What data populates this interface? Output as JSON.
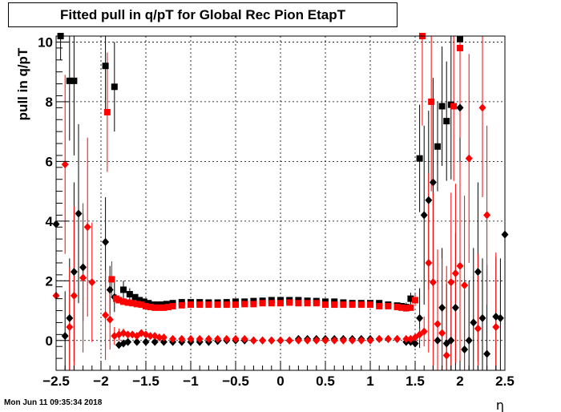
{
  "title": "Fitted pull in q/pT for Global Rec Pion EtapT",
  "timestamp": "Mon Jun 11 09:35:34 2018",
  "colors": {
    "series_black": "#000000",
    "series_red": "#ff0000",
    "grid": "#000000",
    "background": "#ffffff"
  },
  "chart_data": {
    "type": "scatter",
    "title": "Fitted pull in q/pT for Global Rec Pion EtapT",
    "xlabel": "η",
    "ylabel": "pull in q/pT",
    "xlim": [
      -2.5,
      2.5
    ],
    "ylim": [
      -1,
      10.2
    ],
    "grid": true,
    "x_ticks": [
      -2.5,
      -2,
      -1.5,
      -1,
      -0.5,
      0,
      0.5,
      1,
      1.5,
      2,
      2.5
    ],
    "x_tick_labels": [
      "−2.5",
      "−2",
      "−1.5",
      "−1",
      "−0.5",
      "0",
      "0.5",
      "1",
      "1.5",
      "2",
      "2.5"
    ],
    "y_ticks": [
      0,
      2,
      4,
      6,
      8,
      10
    ],
    "y_tick_labels": [
      "0",
      "2",
      "4",
      "6",
      "8",
      "10"
    ],
    "series": [
      {
        "marker": "square",
        "color": "#000000",
        "x": [
          -2.45,
          -2.35,
          -2.3,
          -1.95,
          -1.85,
          -1.75,
          -1.68,
          -1.62,
          -1.57,
          -1.52,
          -1.47,
          -1.42,
          -1.37,
          -1.32,
          -1.27,
          -1.2,
          -1.1,
          -1.0,
          -0.9,
          -0.8,
          -0.7,
          -0.6,
          -0.5,
          -0.4,
          -0.3,
          -0.2,
          -0.1,
          0.0,
          0.1,
          0.2,
          0.3,
          0.4,
          0.5,
          0.6,
          0.7,
          0.8,
          0.9,
          1.0,
          1.1,
          1.2,
          1.3,
          1.35,
          1.4,
          1.45,
          1.55,
          1.75,
          1.8,
          1.85,
          1.9,
          2.0
        ],
        "y": [
          10.2,
          8.7,
          8.7,
          9.2,
          8.5,
          1.7,
          1.55,
          1.45,
          1.35,
          1.3,
          1.25,
          1.2,
          1.2,
          1.2,
          1.22,
          1.25,
          1.28,
          1.28,
          1.28,
          1.27,
          1.27,
          1.28,
          1.3,
          1.3,
          1.32,
          1.33,
          1.35,
          1.35,
          1.35,
          1.35,
          1.33,
          1.32,
          1.3,
          1.3,
          1.27,
          1.25,
          1.25,
          1.25,
          1.25,
          1.2,
          1.17,
          1.15,
          1.12,
          1.4,
          6.1,
          6.5,
          7.85,
          7.35,
          7.9,
          10.1
        ],
        "err": [
          0.8,
          2.0,
          2.5,
          1.5,
          1.5,
          0.3,
          0.2,
          0.1,
          0.08,
          0.06,
          0.05,
          0.05,
          0.05,
          0.05,
          0.05,
          0.05,
          0.05,
          0.05,
          0.05,
          0.05,
          0.05,
          0.05,
          0.05,
          0.05,
          0.05,
          0.05,
          0.05,
          0.05,
          0.05,
          0.05,
          0.05,
          0.05,
          0.05,
          0.05,
          0.05,
          0.05,
          0.05,
          0.05,
          0.06,
          0.07,
          0.08,
          0.1,
          0.15,
          0.2,
          1.8,
          1.5,
          2.0,
          2.0,
          2.5,
          3.0
        ]
      },
      {
        "marker": "diamond",
        "color": "#000000",
        "x": [
          -2.5,
          -2.4,
          -2.35,
          -2.3,
          -2.25,
          -2.2,
          -1.95,
          -1.9,
          -1.85,
          -1.8,
          -1.75,
          -1.7,
          -1.6,
          -1.5,
          -1.4,
          -1.3,
          -1.2,
          -1.1,
          -1.0,
          -0.9,
          -0.8,
          -0.7,
          -0.6,
          -0.5,
          -0.4,
          -0.3,
          -0.2,
          -0.1,
          0.0,
          0.1,
          0.2,
          0.3,
          0.4,
          0.5,
          0.6,
          0.7,
          0.8,
          0.9,
          1.0,
          1.1,
          1.2,
          1.3,
          1.4,
          1.45,
          1.5,
          1.55,
          1.6,
          1.65,
          1.7,
          1.75,
          1.8,
          1.85,
          1.9,
          1.95,
          2.0,
          2.05,
          2.1,
          2.15,
          2.2,
          2.25,
          2.3,
          2.4,
          2.45,
          2.5
        ],
        "y": [
          3.9,
          0.15,
          0.75,
          2.3,
          4.25,
          2.45,
          3.3,
          1.7,
          1.45,
          -0.15,
          -0.1,
          -0.05,
          -0.05,
          -0.05,
          -0.05,
          -0.05,
          -0.05,
          -0.05,
          -0.05,
          -0.05,
          -0.05,
          -0.02,
          0.0,
          0.0,
          0.0,
          0.0,
          0.0,
          0.0,
          0.0,
          0.0,
          0.05,
          0.05,
          0.05,
          0.05,
          0.05,
          0.05,
          0.05,
          0.05,
          0.05,
          0.05,
          0.05,
          0.05,
          -0.05,
          -0.05,
          -0.1,
          0.75,
          4.2,
          4.7,
          5.3,
          0.0,
          1.1,
          -0.1,
          0.0,
          1.1,
          7.8,
          -0.3,
          0.0,
          0.6,
          2.3,
          0.75,
          -0.45,
          0.8,
          0.75,
          3.55
        ],
        "err": [
          3.0,
          1.5,
          2.0,
          3.0,
          3.0,
          1.8,
          1.5,
          0.8,
          0.5,
          0.08,
          0.05,
          0.05,
          0.04,
          0.04,
          0.04,
          0.04,
          0.04,
          0.04,
          0.04,
          0.04,
          0.04,
          0.04,
          0.04,
          0.04,
          0.04,
          0.04,
          0.04,
          0.04,
          0.04,
          0.04,
          0.04,
          0.04,
          0.04,
          0.04,
          0.04,
          0.04,
          0.04,
          0.04,
          0.04,
          0.04,
          0.04,
          0.05,
          0.06,
          0.08,
          0.1,
          1.0,
          3.0,
          3.0,
          3.5,
          2.0,
          2.0,
          2.0,
          2.0,
          2.5,
          3.0,
          2.0,
          2.0,
          2.5,
          3.0,
          2.0,
          3.0,
          2.0,
          2.0,
          3.0
        ]
      },
      {
        "marker": "square",
        "color": "#ff0000",
        "x": [
          -1.93,
          -1.88,
          -1.83,
          -1.8,
          -1.75,
          -1.7,
          -1.65,
          -1.6,
          -1.55,
          -1.5,
          -1.45,
          -1.4,
          -1.35,
          -1.3,
          -1.25,
          -1.2,
          -1.1,
          -1.0,
          -0.9,
          -0.8,
          -0.7,
          -0.6,
          -0.5,
          -0.4,
          -0.3,
          -0.2,
          -0.1,
          0.0,
          0.1,
          0.2,
          0.3,
          0.4,
          0.5,
          0.6,
          0.7,
          0.8,
          0.9,
          1.0,
          1.1,
          1.2,
          1.3,
          1.35,
          1.4,
          1.45,
          1.5,
          1.58,
          1.68,
          1.93,
          2.0
        ],
        "y": [
          7.65,
          2.05,
          1.4,
          1.35,
          1.3,
          1.27,
          1.25,
          1.22,
          1.2,
          1.15,
          1.12,
          1.1,
          1.1,
          1.1,
          1.12,
          1.15,
          1.18,
          1.2,
          1.2,
          1.2,
          1.2,
          1.2,
          1.2,
          1.22,
          1.22,
          1.25,
          1.25,
          1.25,
          1.27,
          1.25,
          1.25,
          1.25,
          1.2,
          1.2,
          1.2,
          1.2,
          1.2,
          1.2,
          1.15,
          1.15,
          1.12,
          1.1,
          1.08,
          1.1,
          1.35,
          10.2,
          8.0,
          7.85,
          9.8
        ],
        "err": [
          2.0,
          0.6,
          0.15,
          0.1,
          0.08,
          0.06,
          0.05,
          0.05,
          0.05,
          0.05,
          0.05,
          0.05,
          0.05,
          0.05,
          0.05,
          0.05,
          0.05,
          0.05,
          0.05,
          0.05,
          0.05,
          0.05,
          0.05,
          0.05,
          0.05,
          0.05,
          0.05,
          0.05,
          0.05,
          0.05,
          0.05,
          0.05,
          0.05,
          0.05,
          0.05,
          0.05,
          0.05,
          0.05,
          0.05,
          0.05,
          0.06,
          0.07,
          0.08,
          0.1,
          0.2,
          3.0,
          3.0,
          2.5,
          3.0
        ]
      },
      {
        "marker": "diamond",
        "color": "#ff0000",
        "x": [
          -2.5,
          -2.4,
          -2.35,
          -2.3,
          -2.2,
          -2.15,
          -2.1,
          -1.95,
          -1.9,
          -1.85,
          -1.8,
          -1.75,
          -1.7,
          -1.65,
          -1.6,
          -1.55,
          -1.5,
          -1.45,
          -1.4,
          -1.35,
          -1.3,
          -1.2,
          -1.1,
          -1.0,
          -0.9,
          -0.8,
          -0.7,
          -0.6,
          -0.5,
          -0.4,
          -0.3,
          -0.2,
          -0.1,
          0.0,
          0.1,
          0.2,
          0.3,
          0.4,
          0.5,
          0.6,
          0.7,
          0.8,
          0.9,
          1.0,
          1.1,
          1.2,
          1.3,
          1.4,
          1.45,
          1.5,
          1.55,
          1.6,
          1.65,
          1.7,
          1.75,
          1.8,
          1.85,
          1.9,
          1.95,
          2.0,
          2.05,
          2.1,
          2.2,
          2.25,
          2.3,
          2.4
        ],
        "y": [
          1.5,
          5.9,
          0.45,
          1.5,
          2.1,
          3.8,
          1.95,
          0.85,
          0.7,
          0.15,
          0.2,
          0.25,
          0.2,
          0.2,
          0.15,
          0.25,
          0.2,
          0.15,
          0.15,
          0.1,
          0.1,
          0.05,
          0.05,
          0.05,
          0.05,
          0.05,
          0.05,
          0.05,
          0.05,
          0.05,
          0.0,
          0.0,
          0.0,
          0.0,
          0.0,
          0.0,
          0.0,
          0.0,
          0.0,
          0.0,
          0.0,
          0.0,
          0.0,
          0.0,
          0.05,
          0.05,
          0.05,
          0.05,
          0.05,
          0.1,
          0.2,
          0.3,
          2.6,
          1.95,
          0.55,
          0.25,
          -0.5,
          1.95,
          2.25,
          2.5,
          1.85,
          6.1,
          0.4,
          7.8,
          4.2,
          0.45
        ],
        "err": [
          3.0,
          3.0,
          2.0,
          3.0,
          2.5,
          3.0,
          2.0,
          1.5,
          1.0,
          0.3,
          0.2,
          0.15,
          0.1,
          0.1,
          0.08,
          0.08,
          0.06,
          0.05,
          0.05,
          0.05,
          0.05,
          0.04,
          0.04,
          0.04,
          0.04,
          0.04,
          0.04,
          0.04,
          0.04,
          0.04,
          0.04,
          0.04,
          0.04,
          0.04,
          0.04,
          0.04,
          0.04,
          0.04,
          0.04,
          0.04,
          0.04,
          0.04,
          0.04,
          0.04,
          0.04,
          0.04,
          0.05,
          0.06,
          0.08,
          0.1,
          0.2,
          0.5,
          3.0,
          3.0,
          2.5,
          2.5,
          3.0,
          3.0,
          3.0,
          3.5,
          3.0,
          3.5,
          2.5,
          3.0,
          3.0,
          2.5
        ]
      }
    ]
  }
}
